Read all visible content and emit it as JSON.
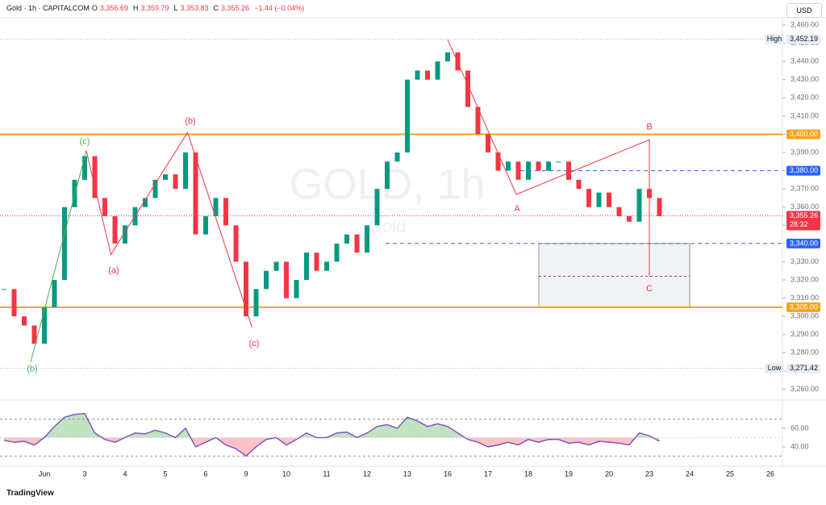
{
  "header": {
    "symbol": "Gold · 1h · CAPITALCOM",
    "ohlc": [
      {
        "key": "O",
        "value": "3,356.69"
      },
      {
        "key": "H",
        "value": "3,359.79"
      },
      {
        "key": "L",
        "value": "3,353.83"
      },
      {
        "key": "C",
        "value": "3,355.26"
      }
    ],
    "change": "−1.44 (−0.04%)",
    "currency": "USD"
  },
  "watermark": {
    "title": "GOLD, 1h",
    "subtitle": "Gold"
  },
  "brand": "TradingView",
  "chart_data": [
    {
      "type": "candlestick",
      "up_color": "#089981",
      "down_color": "#f23645",
      "x": [
        -1.0,
        -0.75,
        -0.5,
        -0.25,
        0,
        0.25,
        0.5,
        0.75,
        1.0,
        1.25,
        1.5,
        1.75,
        2.0,
        2.25,
        2.5,
        2.75,
        3.0,
        3.25,
        3.5,
        3.75,
        4.0,
        4.25,
        4.5,
        4.75,
        5.0,
        5.25,
        5.5,
        5.75,
        6.0,
        6.25,
        6.5,
        6.75,
        7.0,
        7.25,
        7.5,
        7.75,
        8.0,
        8.25,
        8.5,
        8.75,
        9.0,
        9.25,
        9.5,
        9.75,
        10.0,
        10.25,
        10.5,
        10.75,
        11.0,
        11.25,
        11.5,
        11.75,
        12.0,
        12.25,
        12.5,
        12.75,
        13.0,
        13.25,
        13.5,
        13.75,
        14.0,
        14.25,
        14.5,
        14.75,
        15.0,
        15.25
      ],
      "values": [
        3315,
        3300,
        3295,
        3285,
        3305,
        3320,
        3360,
        3375,
        3388,
        3365,
        3355,
        3340,
        3350,
        3360,
        3365,
        3375,
        3378,
        3370,
        3390,
        3345,
        3355,
        3365,
        3350,
        3330,
        3300,
        3315,
        3325,
        3330,
        3310,
        3320,
        3335,
        3325,
        3330,
        3340,
        3345,
        3335,
        3350,
        3370,
        3385,
        3390,
        3430,
        3435,
        3430,
        3440,
        3445,
        3435,
        3415,
        3400,
        3390,
        3380,
        3385,
        3375,
        3385,
        3380,
        3385,
        3385,
        3375,
        3370,
        3360,
        3368,
        3360,
        3355,
        3352,
        3370,
        3365,
        3355
      ],
      "xlim": [
        -1.1,
        18.3
      ],
      "xticks": [
        {
          "value": 0,
          "label": "Jun"
        },
        {
          "value": 1,
          "label": "3"
        },
        {
          "value": 2,
          "label": "4"
        },
        {
          "value": 3,
          "label": "5"
        },
        {
          "value": 4,
          "label": "6"
        },
        {
          "value": 5,
          "label": "9"
        },
        {
          "value": 6,
          "label": "10"
        },
        {
          "value": 7,
          "label": "11"
        },
        {
          "value": 8,
          "label": "12"
        },
        {
          "value": 9,
          "label": "13"
        },
        {
          "value": 10,
          "label": "16"
        },
        {
          "value": 11,
          "label": "17"
        },
        {
          "value": 12,
          "label": "18"
        },
        {
          "value": 13,
          "label": "19"
        },
        {
          "value": 14,
          "label": "20"
        },
        {
          "value": 15,
          "label": "23"
        },
        {
          "value": 16,
          "label": "24"
        },
        {
          "value": 17,
          "label": "25"
        },
        {
          "value": 18,
          "label": "26"
        }
      ],
      "ylim": [
        3254,
        3464
      ],
      "yticks": [
        {
          "value": 3260,
          "label": "3,260.00"
        },
        {
          "value": 3270,
          "label": "3,270.00"
        },
        {
          "value": 3280,
          "label": "3,280.00"
        },
        {
          "value": 3290,
          "label": "3,290.00"
        },
        {
          "value": 3300,
          "label": "3,300.00"
        },
        {
          "value": 3310,
          "label": "3,310.00"
        },
        {
          "value": 3320,
          "label": "3,320.00"
        },
        {
          "value": 3330,
          "label": "3,330.00"
        },
        {
          "value": 3340,
          "label": "3,340.00"
        },
        {
          "value": 3350,
          "label": "3,350.00"
        },
        {
          "value": 3360,
          "label": "3,360.00"
        },
        {
          "value": 3370,
          "label": "3,370.00"
        },
        {
          "value": 3380,
          "label": "3,380.00"
        },
        {
          "value": 3390,
          "label": "3,390.00"
        },
        {
          "value": 3400,
          "label": "3,400.00"
        },
        {
          "value": 3410,
          "label": "3,410.00"
        },
        {
          "value": 3420,
          "label": "3,420.00"
        },
        {
          "value": 3430,
          "label": "3,430.00"
        },
        {
          "value": 3440,
          "label": "3,440.00"
        },
        {
          "value": 3450,
          "label": "3,450.00"
        },
        {
          "value": 3460,
          "label": "3,460.00"
        }
      ],
      "levels": [
        {
          "value": 3452.19,
          "label": "3,452.19",
          "tag": "High",
          "color": "#b2b5be",
          "style": "dotted"
        },
        {
          "value": 3400,
          "label": "3,400.00",
          "color": "#f7a21b",
          "style": "solid"
        },
        {
          "value": 3380,
          "label": "3,380.00",
          "color": "#2962ff",
          "style": "dashed",
          "x_start": 11.8
        },
        {
          "value": 3355.26,
          "label": "3,355.26",
          "countdown": "28:32",
          "color": "#f23645",
          "style": "dotted"
        },
        {
          "value": 3340,
          "label": "3,340.00",
          "color": "#2962ff",
          "style": "dashed",
          "x_start": 8.46
        },
        {
          "value": 3305,
          "label": "3,305.00",
          "color": "#f7a21b",
          "style": "solid"
        },
        {
          "value": 3271.42,
          "label": "3,271.42",
          "tag": "Low",
          "color": "#b2b5be",
          "style": "dotted"
        }
      ],
      "zone": {
        "x": [
          12.26,
          16.0
        ],
        "y": [
          3305,
          3340
        ],
        "mid": 3322
      },
      "waves": [
        {
          "color": "#4caf50",
          "x": [
            -0.34,
            1.04
          ],
          "y": [
            3275,
            3391
          ]
        },
        {
          "color": "#f23645",
          "x": [
            1.04,
            1.65,
            3.55,
            5.15
          ],
          "y": [
            3391,
            3334,
            3401,
            3294
          ]
        },
        {
          "color": "#f23645",
          "x": [
            10.0,
            11.7,
            15.0,
            15.0
          ],
          "y": [
            3452,
            3367,
            3397,
            3322
          ]
        }
      ],
      "annotations": [
        {
          "text": "(b)",
          "x": -0.3,
          "y": 3271,
          "color": "#4caf50"
        },
        {
          "text": "(c)",
          "x": 1.0,
          "y": 3396,
          "color": "#4caf50"
        },
        {
          "text": "(a)",
          "x": 1.72,
          "y": 3325,
          "color": "#f23645"
        },
        {
          "text": "(b)",
          "x": 3.62,
          "y": 3407,
          "color": "#f23645"
        },
        {
          "text": "(c)",
          "x": 5.2,
          "y": 3285,
          "color": "#f23645"
        },
        {
          "text": "A",
          "x": 11.72,
          "y": 3359,
          "color": "#f23645"
        },
        {
          "text": "B",
          "x": 15.0,
          "y": 3404,
          "color": "#f23645"
        },
        {
          "text": "C",
          "x": 15.0,
          "y": 3315,
          "color": "#f23645"
        }
      ]
    },
    {
      "type": "rsi",
      "color": "#7e57c2",
      "mid": 50,
      "bands": [
        30,
        70
      ],
      "x": [
        -1.0,
        -0.75,
        -0.5,
        -0.25,
        0,
        0.25,
        0.5,
        0.75,
        1.0,
        1.25,
        1.5,
        1.75,
        2.0,
        2.25,
        2.5,
        2.75,
        3.0,
        3.25,
        3.5,
        3.75,
        4.0,
        4.25,
        4.5,
        4.75,
        5.0,
        5.25,
        5.5,
        5.75,
        6.0,
        6.25,
        6.5,
        6.75,
        7.0,
        7.25,
        7.5,
        7.75,
        8.0,
        8.25,
        8.5,
        8.75,
        9.0,
        9.25,
        9.5,
        9.75,
        10.0,
        10.25,
        10.5,
        10.75,
        11.0,
        11.25,
        11.5,
        11.75,
        12.0,
        12.25,
        12.5,
        12.75,
        13.0,
        13.25,
        13.5,
        13.75,
        14.0,
        14.25,
        14.5,
        14.75,
        15.0,
        15.25
      ],
      "values": [
        47,
        45,
        46,
        42,
        50,
        62,
        72,
        75,
        76,
        55,
        48,
        45,
        50,
        55,
        54,
        58,
        55,
        50,
        60,
        40,
        45,
        50,
        42,
        38,
        30,
        40,
        48,
        50,
        42,
        48,
        55,
        50,
        50,
        55,
        56,
        50,
        55,
        62,
        64,
        60,
        72,
        68,
        62,
        65,
        62,
        55,
        48,
        45,
        40,
        42,
        45,
        42,
        48,
        45,
        48,
        48,
        44,
        45,
        42,
        46,
        45,
        44,
        42,
        55,
        52,
        46
      ],
      "xlim": [
        -1.1,
        18.3
      ],
      "ylim": [
        19,
        87
      ],
      "yticks": [
        {
          "value": 40,
          "label": "40.00"
        },
        {
          "value": 60,
          "label": "60.00"
        }
      ]
    }
  ]
}
